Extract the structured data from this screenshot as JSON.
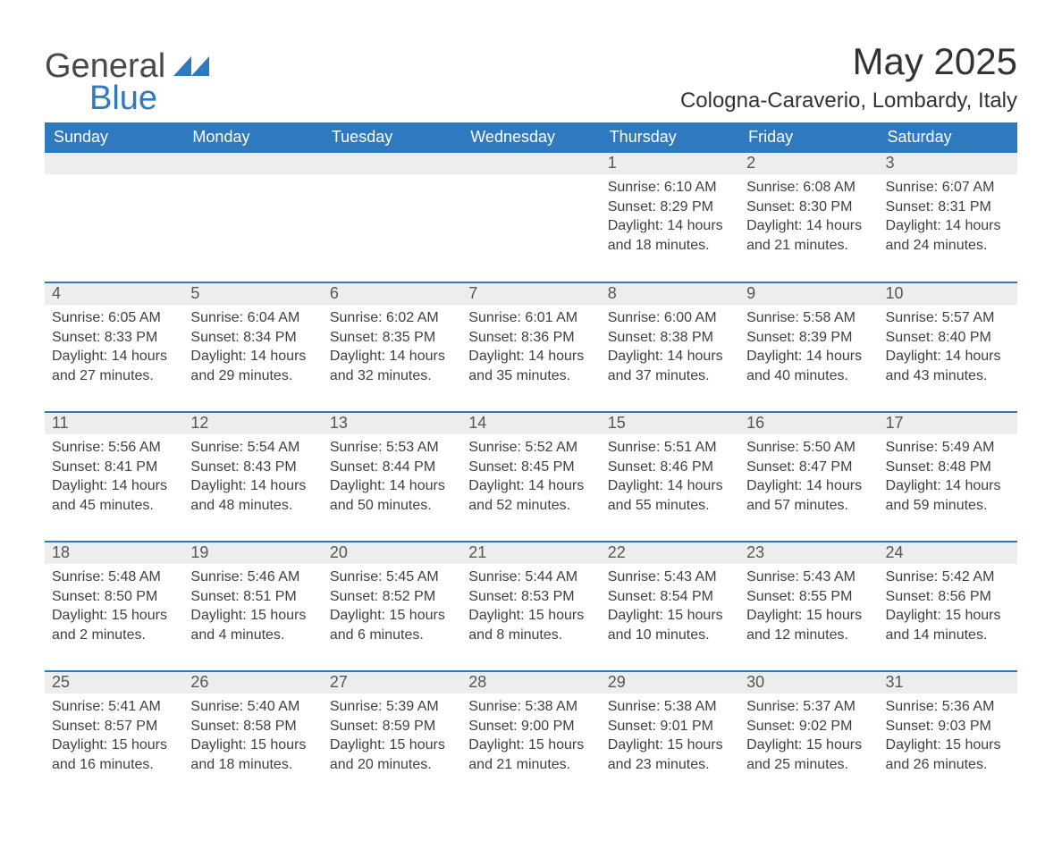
{
  "brand": {
    "general": "General",
    "blue": "Blue",
    "logo_color": "#2f7abf"
  },
  "title": "May 2025",
  "location": "Cologna-Caraverio, Lombardy, Italy",
  "colors": {
    "header_bg": "#2f7abf",
    "header_text": "#ffffff",
    "row_divider": "#2f7abf",
    "daynum_bg": "#ededed",
    "daynum_text": "#555555",
    "body_text": "#404040",
    "page_bg": "#ffffff"
  },
  "typography": {
    "title_fontsize": 42,
    "location_fontsize": 24,
    "dayheader_fontsize": 18,
    "daynum_fontsize": 18,
    "cell_fontsize": 16,
    "font_family": "Arial"
  },
  "labels": {
    "sunrise": "Sunrise:",
    "sunset": "Sunset:",
    "daylight": "Daylight:"
  },
  "day_headers": [
    "Sunday",
    "Monday",
    "Tuesday",
    "Wednesday",
    "Thursday",
    "Friday",
    "Saturday"
  ],
  "weeks": [
    [
      null,
      null,
      null,
      null,
      {
        "n": "1",
        "sunrise": "6:10 AM",
        "sunset": "8:29 PM",
        "daylight": "14 hours and 18 minutes."
      },
      {
        "n": "2",
        "sunrise": "6:08 AM",
        "sunset": "8:30 PM",
        "daylight": "14 hours and 21 minutes."
      },
      {
        "n": "3",
        "sunrise": "6:07 AM",
        "sunset": "8:31 PM",
        "daylight": "14 hours and 24 minutes."
      }
    ],
    [
      {
        "n": "4",
        "sunrise": "6:05 AM",
        "sunset": "8:33 PM",
        "daylight": "14 hours and 27 minutes."
      },
      {
        "n": "5",
        "sunrise": "6:04 AM",
        "sunset": "8:34 PM",
        "daylight": "14 hours and 29 minutes."
      },
      {
        "n": "6",
        "sunrise": "6:02 AM",
        "sunset": "8:35 PM",
        "daylight": "14 hours and 32 minutes."
      },
      {
        "n": "7",
        "sunrise": "6:01 AM",
        "sunset": "8:36 PM",
        "daylight": "14 hours and 35 minutes."
      },
      {
        "n": "8",
        "sunrise": "6:00 AM",
        "sunset": "8:38 PM",
        "daylight": "14 hours and 37 minutes."
      },
      {
        "n": "9",
        "sunrise": "5:58 AM",
        "sunset": "8:39 PM",
        "daylight": "14 hours and 40 minutes."
      },
      {
        "n": "10",
        "sunrise": "5:57 AM",
        "sunset": "8:40 PM",
        "daylight": "14 hours and 43 minutes."
      }
    ],
    [
      {
        "n": "11",
        "sunrise": "5:56 AM",
        "sunset": "8:41 PM",
        "daylight": "14 hours and 45 minutes."
      },
      {
        "n": "12",
        "sunrise": "5:54 AM",
        "sunset": "8:43 PM",
        "daylight": "14 hours and 48 minutes."
      },
      {
        "n": "13",
        "sunrise": "5:53 AM",
        "sunset": "8:44 PM",
        "daylight": "14 hours and 50 minutes."
      },
      {
        "n": "14",
        "sunrise": "5:52 AM",
        "sunset": "8:45 PM",
        "daylight": "14 hours and 52 minutes."
      },
      {
        "n": "15",
        "sunrise": "5:51 AM",
        "sunset": "8:46 PM",
        "daylight": "14 hours and 55 minutes."
      },
      {
        "n": "16",
        "sunrise": "5:50 AM",
        "sunset": "8:47 PM",
        "daylight": "14 hours and 57 minutes."
      },
      {
        "n": "17",
        "sunrise": "5:49 AM",
        "sunset": "8:48 PM",
        "daylight": "14 hours and 59 minutes."
      }
    ],
    [
      {
        "n": "18",
        "sunrise": "5:48 AM",
        "sunset": "8:50 PM",
        "daylight": "15 hours and 2 minutes."
      },
      {
        "n": "19",
        "sunrise": "5:46 AM",
        "sunset": "8:51 PM",
        "daylight": "15 hours and 4 minutes."
      },
      {
        "n": "20",
        "sunrise": "5:45 AM",
        "sunset": "8:52 PM",
        "daylight": "15 hours and 6 minutes."
      },
      {
        "n": "21",
        "sunrise": "5:44 AM",
        "sunset": "8:53 PM",
        "daylight": "15 hours and 8 minutes."
      },
      {
        "n": "22",
        "sunrise": "5:43 AM",
        "sunset": "8:54 PM",
        "daylight": "15 hours and 10 minutes."
      },
      {
        "n": "23",
        "sunrise": "5:43 AM",
        "sunset": "8:55 PM",
        "daylight": "15 hours and 12 minutes."
      },
      {
        "n": "24",
        "sunrise": "5:42 AM",
        "sunset": "8:56 PM",
        "daylight": "15 hours and 14 minutes."
      }
    ],
    [
      {
        "n": "25",
        "sunrise": "5:41 AM",
        "sunset": "8:57 PM",
        "daylight": "15 hours and 16 minutes."
      },
      {
        "n": "26",
        "sunrise": "5:40 AM",
        "sunset": "8:58 PM",
        "daylight": "15 hours and 18 minutes."
      },
      {
        "n": "27",
        "sunrise": "5:39 AM",
        "sunset": "8:59 PM",
        "daylight": "15 hours and 20 minutes."
      },
      {
        "n": "28",
        "sunrise": "5:38 AM",
        "sunset": "9:00 PM",
        "daylight": "15 hours and 21 minutes."
      },
      {
        "n": "29",
        "sunrise": "5:38 AM",
        "sunset": "9:01 PM",
        "daylight": "15 hours and 23 minutes."
      },
      {
        "n": "30",
        "sunrise": "5:37 AM",
        "sunset": "9:02 PM",
        "daylight": "15 hours and 25 minutes."
      },
      {
        "n": "31",
        "sunrise": "5:36 AM",
        "sunset": "9:03 PM",
        "daylight": "15 hours and 26 minutes."
      }
    ]
  ]
}
